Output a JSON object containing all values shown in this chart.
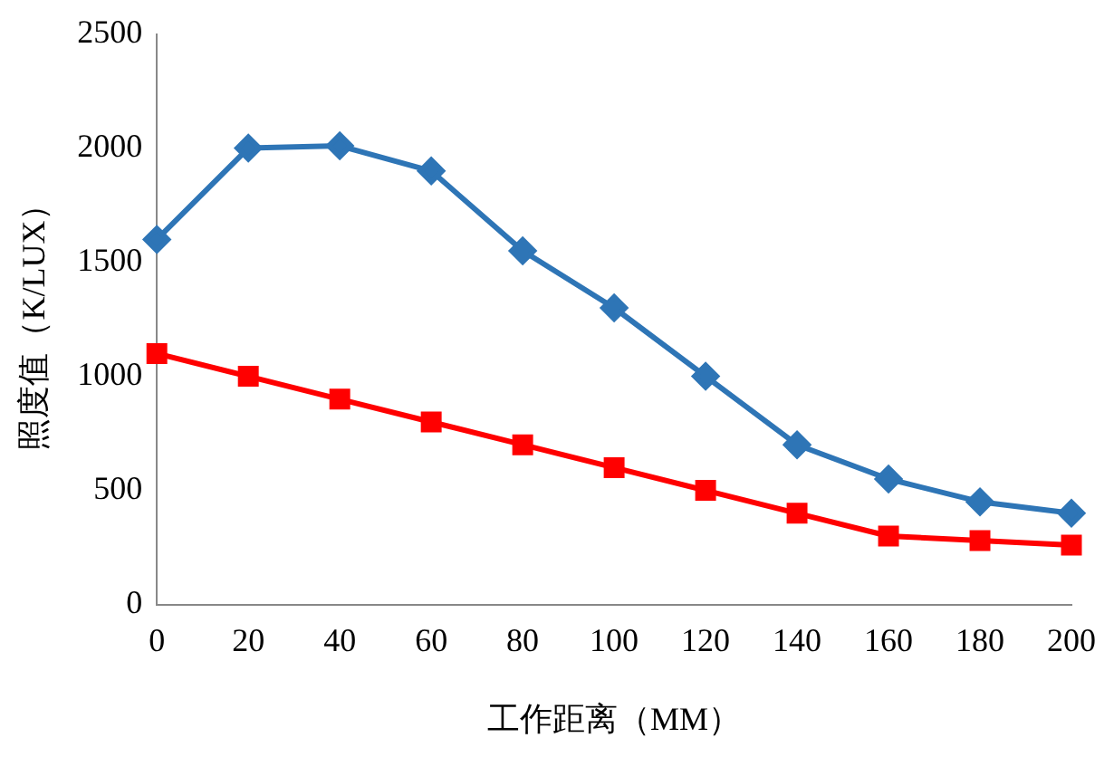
{
  "chart_data": {
    "type": "line",
    "xlabel": "工作距离（MM）",
    "ylabel": "照度值（K/LUX）",
    "categories": [
      "0",
      "20",
      "40",
      "60",
      "80",
      "100",
      "120",
      "140",
      "160",
      "180",
      "200"
    ],
    "series": [
      {
        "color": "#2e75b6",
        "marker": "diamond",
        "values": [
          1600,
          2000,
          2010,
          1900,
          1550,
          1300,
          1000,
          700,
          550,
          450,
          400
        ]
      },
      {
        "color": "#ff0000",
        "marker": "square",
        "values": [
          1100,
          1000,
          900,
          800,
          700,
          600,
          500,
          400,
          300,
          280,
          260
        ]
      }
    ],
    "ylim": [
      0,
      2500
    ],
    "yticks": [
      0,
      500,
      1000,
      1500,
      2000,
      2500
    ],
    "grid": false,
    "legend": false,
    "line_style": "solid"
  }
}
